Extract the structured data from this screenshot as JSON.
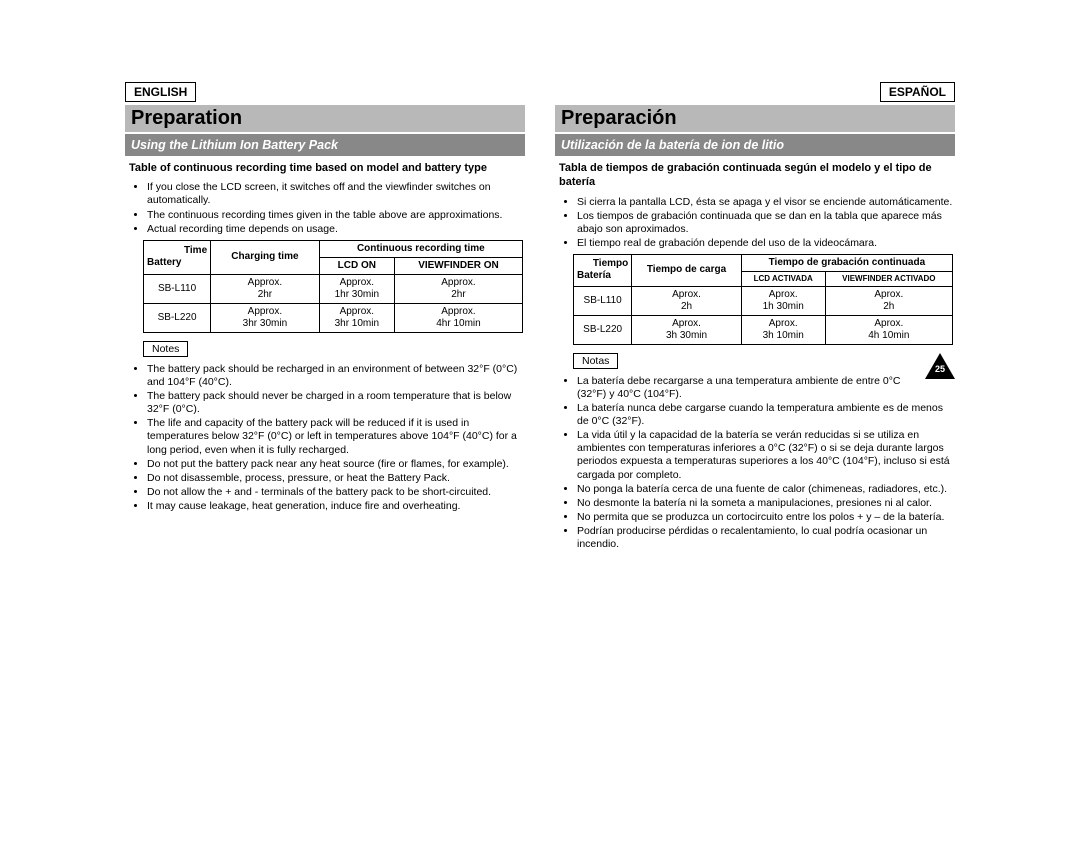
{
  "page_number": "25",
  "en": {
    "lang": "ENGLISH",
    "title": "Preparation",
    "subtitle": "Using the Lithium Ion Battery Pack",
    "section_label": "Table of continuous recording time based on model and battery type",
    "intro": [
      "If you close the LCD screen, it switches off and the viewfinder switches on automatically.",
      "The continuous recording times given in the table above are approximations.",
      "Actual recording time depends on usage."
    ],
    "table": {
      "diag_top": "Time",
      "diag_bot": "Battery",
      "charging": "Charging time",
      "cont_header": "Continuous recording time",
      "lcd": "LCD ON",
      "vf": "VIEWFINDER ON",
      "rows": [
        {
          "bat": "SB-L110",
          "chg": "Approx.\n2hr",
          "lcd": "Approx.\n1hr 30min",
          "vf": "Approx.\n2hr"
        },
        {
          "bat": "SB-L220",
          "chg": "Approx.\n3hr 30min",
          "lcd": "Approx.\n3hr 10min",
          "vf": "Approx.\n4hr 10min"
        }
      ]
    },
    "notes_label": "Notes",
    "notes": [
      "The battery pack should be recharged in an environment of between 32°F (0°C) and 104°F (40°C).",
      "The battery pack should never be charged in a room temperature that is below 32°F (0°C).",
      "The life and capacity of the battery pack will be reduced if it is used in temperatures below 32°F (0°C) or left in temperatures above 104°F (40°C) for a long period, even when it is fully recharged.",
      "Do not put the battery pack near any heat source (fire or flames, for example).",
      "Do not disassemble, process, pressure, or heat the Battery Pack.",
      "Do not allow the + and - terminals of the battery pack to be short-circuited.",
      "It may cause leakage, heat generation, induce fire and overheating."
    ]
  },
  "es": {
    "lang": "ESPAÑOL",
    "title": "Preparación",
    "subtitle": "Utilización de la batería de ion de litio",
    "section_label": "Tabla de tiempos de grabación continuada según el modelo y el tipo de batería",
    "intro": [
      "Si cierra la pantalla LCD, ésta se apaga y el visor se enciende automáticamente.",
      "Los tiempos de grabación continuada que se dan en la tabla que aparece más abajo son aproximados.",
      "El tiempo real de grabación depende del uso de la videocámara."
    ],
    "table": {
      "diag_top": "Tiempo",
      "diag_bot": "Batería",
      "charging": "Tiempo de carga",
      "cont_header": "Tiempo de grabación continuada",
      "lcd": "LCD ACTIVADA",
      "vf": "VIEWFINDER ACTIVADO",
      "rows": [
        {
          "bat": "SB-L110",
          "chg": "Aprox.\n2h",
          "lcd": "Aprox.\n1h 30min",
          "vf": "Aprox.\n2h"
        },
        {
          "bat": "SB-L220",
          "chg": "Aprox.\n3h 30min",
          "lcd": "Aprox.\n3h 10min",
          "vf": "Aprox.\n4h 10min"
        }
      ]
    },
    "notes_label": "Notas",
    "notes": [
      "La batería debe recargarse a una temperatura ambiente de entre 0°C (32°F) y 40°C (104°F).",
      "La batería nunca debe cargarse cuando la temperatura ambiente es de menos de 0°C (32°F).",
      "La vida útil y la capacidad de la batería se verán reducidas si se utiliza en ambientes con temperaturas inferiores a 0°C (32°F) o si se deja durante largos periodos expuesta a temperaturas superiores a los 40°C (104°F), incluso si está cargada por completo.",
      "No ponga la batería cerca de una fuente de calor (chimeneas, radiadores, etc.).",
      "No desmonte la batería ni la someta a manipulaciones, presiones ni al calor.",
      "No permita que se produzca un cortocircuito entre los polos + y – de la batería.",
      "Podrían producirse pérdidas o recalentamiento, lo cual podría ocasionar un incendio."
    ]
  }
}
